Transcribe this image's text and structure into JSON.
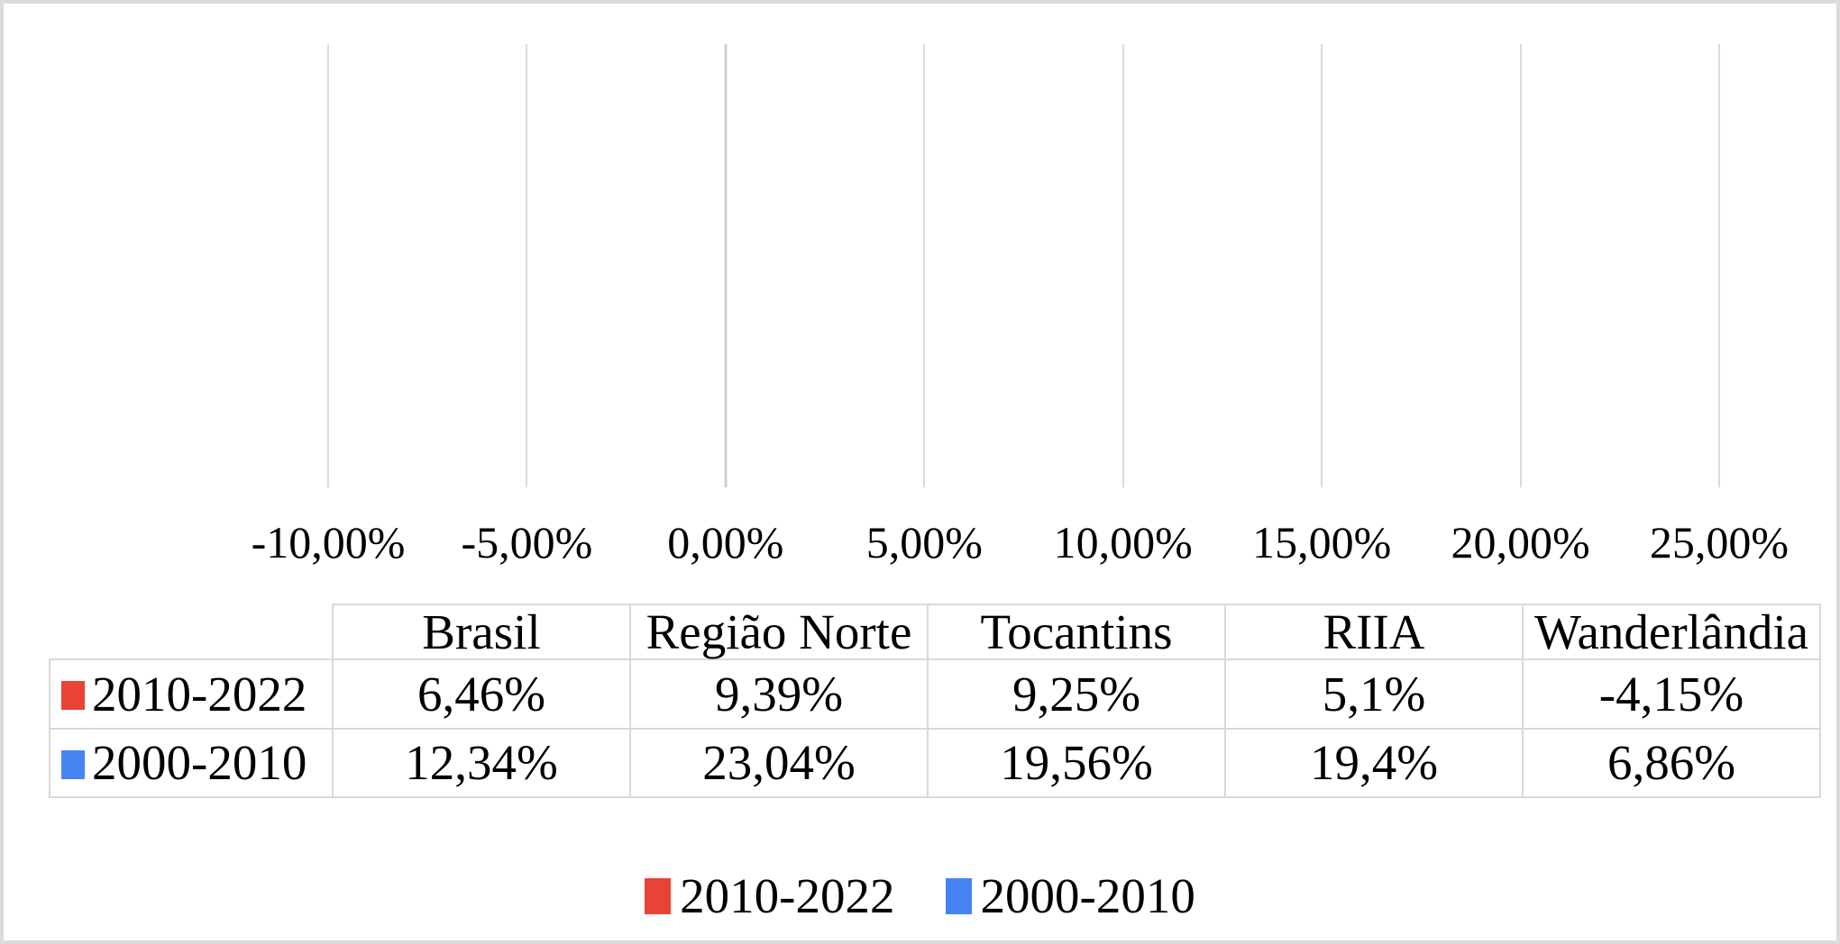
{
  "page": {
    "background": "#FFFFFF",
    "border_color": "#DADADA"
  },
  "colors": {
    "series_red": "#E94337",
    "series_blue": "#4684F3",
    "gridline": "#DBDBDB",
    "zero_axis": "#CFCFCF",
    "table_border": "#D9D9D9"
  },
  "chart_data": {
    "type": "bar",
    "orientation": "horizontal-clustered",
    "categories": [
      "Wanderlândia",
      "RIIA",
      "Tocantins",
      "Região Norte",
      "Brasil"
    ],
    "series": [
      {
        "name": "2010-2022",
        "color": "#E94337",
        "values": [
          -4.15,
          5.1,
          9.25,
          9.39,
          6.46
        ]
      },
      {
        "name": "2000-2010",
        "color": "#4684F3",
        "values": [
          6.86,
          19.4,
          19.56,
          23.04,
          12.34
        ]
      }
    ],
    "xlim": [
      -10,
      25
    ],
    "x_ticks": [
      {
        "value": -10,
        "label": "-10,00%"
      },
      {
        "value": -5,
        "label": "-5,00%"
      },
      {
        "value": 0,
        "label": "0,00%"
      },
      {
        "value": 5,
        "label": "5,00%"
      },
      {
        "value": 10,
        "label": "10,00%"
      },
      {
        "value": 15,
        "label": "15,00%"
      },
      {
        "value": 20,
        "label": "20,00%"
      },
      {
        "value": 25,
        "label": "25,00%"
      }
    ],
    "grid": true,
    "legend_position": "bottom"
  },
  "table": {
    "col_headers": [
      "Brasil",
      "Região Norte",
      "Tocantins",
      "RIIA",
      "Wanderlândia"
    ],
    "rows": [
      {
        "label": "2010-2022",
        "swatch": "#E94337",
        "values": [
          "6,46%",
          "9,39%",
          "9,25%",
          "5,1%",
          "-4,15%"
        ]
      },
      {
        "label": "2000-2010",
        "swatch": "#4684F3",
        "values": [
          "12,34%",
          "23,04%",
          "19,56%",
          "19,4%",
          "6,86%"
        ]
      }
    ]
  },
  "legend": {
    "items": [
      {
        "label": "2010-2022",
        "color": "#E94337"
      },
      {
        "label": "2000-2010",
        "color": "#4684F3"
      }
    ]
  }
}
